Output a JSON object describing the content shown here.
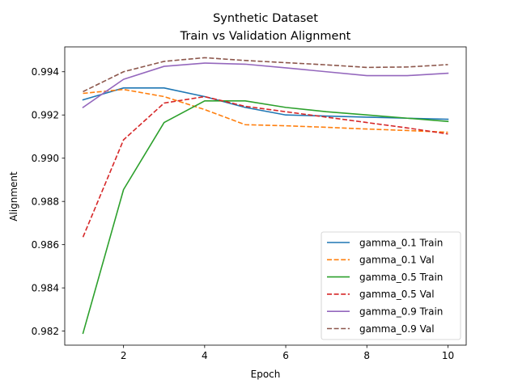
{
  "chart_data": {
    "type": "line",
    "title": "Synthetic Dataset",
    "subtitle": "Train vs Validation Alignment",
    "xlabel": "Epoch",
    "ylabel": "Alignment",
    "x": [
      1,
      2,
      3,
      4,
      5,
      6,
      7,
      8,
      9,
      10
    ],
    "xlim": [
      0.55,
      10.45
    ],
    "ylim": [
      0.98135,
      0.99515
    ],
    "xticks": [
      2,
      4,
      6,
      8,
      10
    ],
    "yticks": [
      0.982,
      0.984,
      0.986,
      0.988,
      0.99,
      0.992,
      0.994
    ],
    "ytick_labels": [
      "0.982",
      "0.984",
      "0.986",
      "0.988",
      "0.990",
      "0.992",
      "0.994"
    ],
    "grid": false,
    "legend_position": "lower-right",
    "series": [
      {
        "name": "gamma_0.1 Train",
        "color": "#1f77b4",
        "dash": "solid",
        "values": [
          0.9927,
          0.99325,
          0.99325,
          0.99285,
          0.99235,
          0.992,
          0.99195,
          0.9919,
          0.99185,
          0.9918
        ]
      },
      {
        "name": "gamma_0.1 Val",
        "color": "#ff7f0e",
        "dash": "dashed",
        "values": [
          0.993,
          0.99318,
          0.99285,
          0.99225,
          0.99155,
          0.9915,
          0.99143,
          0.99135,
          0.99128,
          0.9912
        ]
      },
      {
        "name": "gamma_0.5 Train",
        "color": "#2ca02c",
        "dash": "solid",
        "values": [
          0.9819,
          0.98855,
          0.99165,
          0.99265,
          0.99265,
          0.99235,
          0.99215,
          0.992,
          0.99185,
          0.9917
        ]
      },
      {
        "name": "gamma_0.5 Val",
        "color": "#d62728",
        "dash": "dashed",
        "values": [
          0.98635,
          0.99085,
          0.99255,
          0.99285,
          0.9924,
          0.99215,
          0.9919,
          0.99165,
          0.9914,
          0.99112
        ]
      },
      {
        "name": "gamma_0.9 Train",
        "color": "#9467bd",
        "dash": "solid",
        "values": [
          0.99235,
          0.99365,
          0.99425,
          0.9944,
          0.99435,
          0.99418,
          0.994,
          0.99382,
          0.99382,
          0.99393
        ]
      },
      {
        "name": "gamma_0.9 Val",
        "color": "#8c564b",
        "dash": "dashed",
        "values": [
          0.99308,
          0.994,
          0.99448,
          0.99465,
          0.99452,
          0.99442,
          0.99432,
          0.9942,
          0.99422,
          0.99433
        ]
      }
    ]
  }
}
